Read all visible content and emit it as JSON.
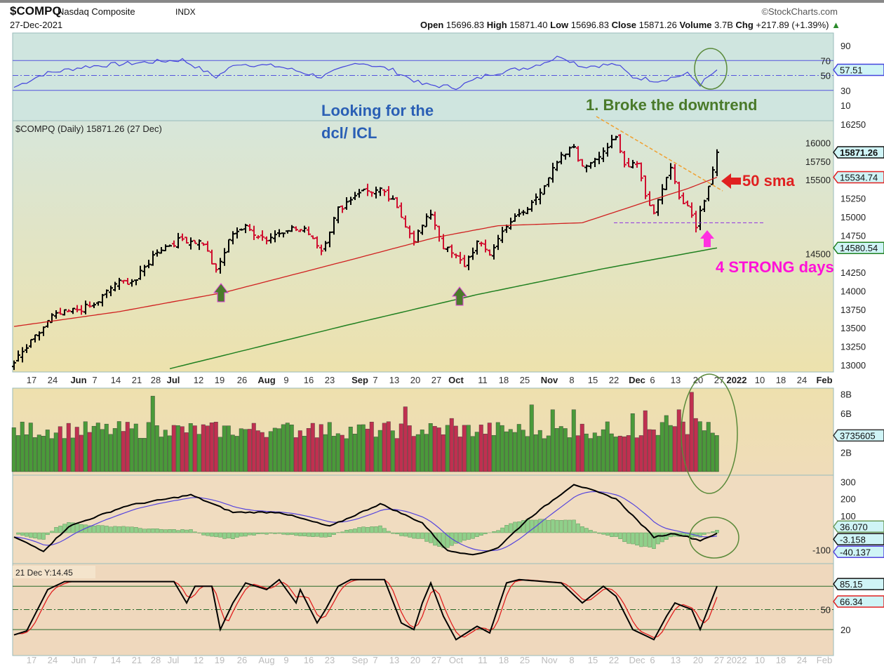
{
  "header": {
    "symbol": "$COMPQ",
    "name": "Nasdaq Composite",
    "exchange": "INDX",
    "date": "27-Dec-2021",
    "watermark": "©StockCharts.com",
    "open_label": "Open",
    "open": "15696.83",
    "high_label": "High",
    "high": "15871.40",
    "low_label": "Low",
    "low": "15696.83",
    "close_label": "Close",
    "close": "15871.26",
    "volume_label": "Volume",
    "volume": "3.7B",
    "chg_label": "Chg",
    "chg": "+217.89 (+1.39%)",
    "up_arrow": "▲"
  },
  "annotations": {
    "looking1": "Looking for the",
    "looking2": "dcl/ ICL",
    "broke": "1. Broke the downtrend",
    "sma50": "50 sma",
    "strong": "4 STRONG days",
    "price_legend": "$COMPQ (Daily) 15871.26 (27 Dec)",
    "stoch_legend": "21 Dec Y:14.45"
  },
  "colors": {
    "up": "#000000",
    "down": "#d01030",
    "sma50": "#d02020",
    "sma200": "#208020",
    "rsi": "#4444dd",
    "vol_up": "#4a9a3a",
    "vol_down": "#c03050"
  },
  "chart_data": [
    {
      "type": "line",
      "title": "RSI(14)",
      "ylim": [
        0,
        100
      ],
      "yticks": [
        "90",
        "70",
        "50",
        "30",
        "10"
      ],
      "last_label": "57.51",
      "points": [
        [
          0,
          34
        ],
        [
          7,
          52
        ],
        [
          17,
          62
        ],
        [
          27,
          66
        ],
        [
          40,
          71
        ],
        [
          48,
          48
        ],
        [
          53,
          66
        ],
        [
          63,
          62
        ],
        [
          73,
          48
        ],
        [
          82,
          68
        ],
        [
          90,
          57
        ],
        [
          97,
          38
        ],
        [
          105,
          34
        ],
        [
          113,
          52
        ],
        [
          123,
          62
        ],
        [
          130,
          76
        ],
        [
          135,
          62
        ],
        [
          143,
          65
        ],
        [
          147,
          48
        ],
        [
          153,
          43
        ],
        [
          160,
          52
        ],
        [
          163,
          38
        ],
        [
          167,
          57.51
        ]
      ]
    },
    {
      "type": "ohlc",
      "title": "$COMPQ (Daily)",
      "ylim": [
        12900,
        16300
      ],
      "yticks": [
        "16250",
        "16000",
        "15750",
        "15500",
        "15250",
        "15000",
        "14750",
        "14500",
        "14250",
        "14000",
        "13750",
        "13500",
        "13250",
        "13000"
      ],
      "last_labels": {
        "close": "15871.26",
        "sma50": "15534.74",
        "sma200": "14580.54"
      },
      "x_tick_labels": [
        "17",
        "24",
        "Jun",
        "7",
        "14",
        "21",
        "28",
        "Jul",
        "12",
        "19",
        "26",
        "Aug",
        "9",
        "16",
        "23",
        "Sep",
        "7",
        "13",
        "20",
        "27",
        "Oct",
        "11",
        "18",
        "25",
        "Nov",
        "8",
        "15",
        "22",
        "Dec",
        "6",
        "13",
        "20",
        "27",
        "2022",
        "10",
        "18",
        "24",
        "Feb"
      ],
      "close_anchors": [
        [
          0,
          13030
        ],
        [
          4,
          13300
        ],
        [
          9,
          13650
        ],
        [
          15,
          13750
        ],
        [
          19,
          13800
        ],
        [
          24,
          14100
        ],
        [
          29,
          14150
        ],
        [
          34,
          14550
        ],
        [
          40,
          14700
        ],
        [
          45,
          14650
        ],
        [
          48,
          14250
        ],
        [
          52,
          14800
        ],
        [
          55,
          14850
        ],
        [
          60,
          14700
        ],
        [
          65,
          14850
        ],
        [
          70,
          14800
        ],
        [
          73,
          14550
        ],
        [
          77,
          15100
        ],
        [
          82,
          15350
        ],
        [
          87,
          15350
        ],
        [
          90,
          15200
        ],
        [
          95,
          14700
        ],
        [
          99,
          15050
        ],
        [
          102,
          14600
        ],
        [
          107,
          14350
        ],
        [
          110,
          14650
        ],
        [
          113,
          14500
        ],
        [
          117,
          14900
        ],
        [
          122,
          15100
        ],
        [
          126,
          15450
        ],
        [
          130,
          15800
        ],
        [
          133,
          15950
        ],
        [
          135,
          15650
        ],
        [
          140,
          15900
        ],
        [
          143,
          16050
        ],
        [
          145,
          15700
        ],
        [
          148,
          15750
        ],
        [
          150,
          15300
        ],
        [
          152,
          15050
        ],
        [
          154,
          15400
        ],
        [
          156,
          15650
        ],
        [
          158,
          15300
        ],
        [
          160,
          15150
        ],
        [
          162,
          14900
        ],
        [
          164,
          15250
        ],
        [
          166,
          15650
        ],
        [
          167,
          15871.26
        ]
      ],
      "sma50": [
        [
          0,
          13520
        ],
        [
          25,
          13720
        ],
        [
          50,
          13980
        ],
        [
          80,
          14420
        ],
        [
          100,
          14720
        ],
        [
          115,
          14880
        ],
        [
          135,
          14920
        ],
        [
          150,
          15200
        ],
        [
          160,
          15380
        ],
        [
          167,
          15534.74
        ]
      ],
      "sma200": [
        [
          37,
          12950
        ],
        [
          80,
          13550
        ],
        [
          110,
          13950
        ],
        [
          140,
          14300
        ],
        [
          167,
          14580.54
        ]
      ],
      "support_level": 14920
    },
    {
      "type": "bar",
      "title": "Volume",
      "yticks": [
        "8B",
        "6B",
        "2B"
      ],
      "last_label": "3735605",
      "base_range_B": [
        3.4,
        5.2
      ],
      "spikes_B": [
        [
          33,
          7.8
        ],
        [
          36,
          4.3
        ],
        [
          62,
          4.5
        ],
        [
          71,
          5.0
        ],
        [
          93,
          6.7
        ],
        [
          104,
          5.5
        ],
        [
          123,
          6.9
        ],
        [
          128,
          6.4
        ],
        [
          133,
          6.4
        ],
        [
          147,
          6.0
        ],
        [
          150,
          6.3
        ],
        [
          155,
          5.8
        ],
        [
          158,
          6.4
        ],
        [
          161,
          8.2
        ],
        [
          162,
          5.5
        ]
      ],
      "last_value_B": 3.74
    },
    {
      "type": "line",
      "title": "MACD(12,26,9)",
      "yticks": [
        "300",
        "200",
        "100",
        "-100"
      ],
      "last_labels": {
        "hist": "36.070",
        "macd": "-3.158",
        "signal": "-40.137"
      },
      "macd": [
        [
          0,
          -25
        ],
        [
          7,
          -107
        ],
        [
          13,
          37
        ],
        [
          27,
          160
        ],
        [
          42,
          222
        ],
        [
          52,
          120
        ],
        [
          63,
          120
        ],
        [
          75,
          37
        ],
        [
          87,
          170
        ],
        [
          97,
          58
        ],
        [
          103,
          -107
        ],
        [
          110,
          -128
        ],
        [
          115,
          -87
        ],
        [
          122,
          78
        ],
        [
          133,
          285
        ],
        [
          138,
          243
        ],
        [
          143,
          200
        ],
        [
          152,
          -25
        ],
        [
          157,
          -4
        ],
        [
          163,
          -45
        ],
        [
          167,
          -3.158
        ]
      ]
    },
    {
      "type": "line",
      "title": "Slow Stochastic",
      "ylim": [
        0,
        100
      ],
      "yticks": [
        "50",
        "20"
      ],
      "last_labels": {
        "k": "85.15",
        "d": "66.34"
      },
      "k": [
        [
          0,
          12
        ],
        [
          3,
          18
        ],
        [
          8,
          80
        ],
        [
          12,
          92
        ],
        [
          38,
          92
        ],
        [
          41,
          60
        ],
        [
          43,
          85
        ],
        [
          47,
          85
        ],
        [
          49,
          20
        ],
        [
          52,
          60
        ],
        [
          55,
          90
        ],
        [
          60,
          80
        ],
        [
          63,
          95
        ],
        [
          67,
          60
        ],
        [
          68,
          80
        ],
        [
          72,
          30
        ],
        [
          74,
          50
        ],
        [
          77,
          85
        ],
        [
          80,
          95
        ],
        [
          88,
          95
        ],
        [
          92,
          30
        ],
        [
          95,
          20
        ],
        [
          97,
          60
        ],
        [
          99,
          90
        ],
        [
          102,
          40
        ],
        [
          105,
          5
        ],
        [
          110,
          25
        ],
        [
          113,
          15
        ],
        [
          117,
          90
        ],
        [
          120,
          95
        ],
        [
          130,
          90
        ],
        [
          135,
          60
        ],
        [
          140,
          85
        ],
        [
          143,
          70
        ],
        [
          147,
          20
        ],
        [
          152,
          5
        ],
        [
          155,
          40
        ],
        [
          157,
          60
        ],
        [
          161,
          50
        ],
        [
          163,
          20
        ],
        [
          167,
          85.15
        ]
      ]
    }
  ]
}
